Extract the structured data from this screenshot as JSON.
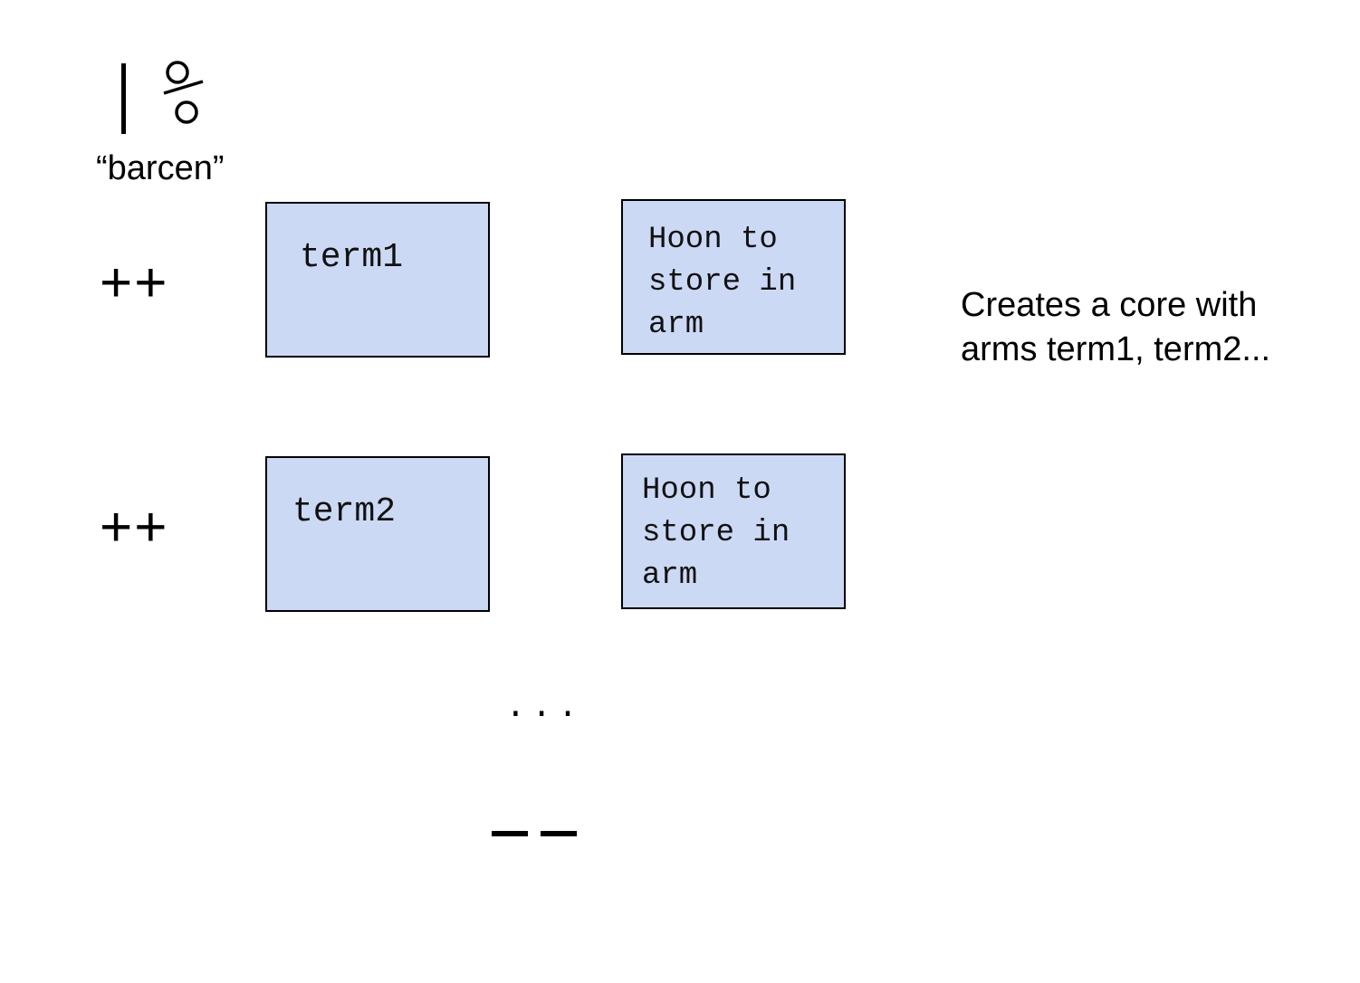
{
  "rune": {
    "glyph_bar": "|",
    "glyph_cen": "%",
    "name": "“barcen”"
  },
  "arms": [
    {
      "marker": "++",
      "term": "term1",
      "hoon_label": "Hoon to\nstore in\narm"
    },
    {
      "marker": "++",
      "term": "term2",
      "hoon_label": "Hoon to\nstore in\narm"
    }
  ],
  "continuation": "...",
  "terminator": "--",
  "description": "Creates a core with arms term1, term2...",
  "colors": {
    "box_fill": "#ccd9f5",
    "box_border": "#000000",
    "text": "#000000"
  }
}
